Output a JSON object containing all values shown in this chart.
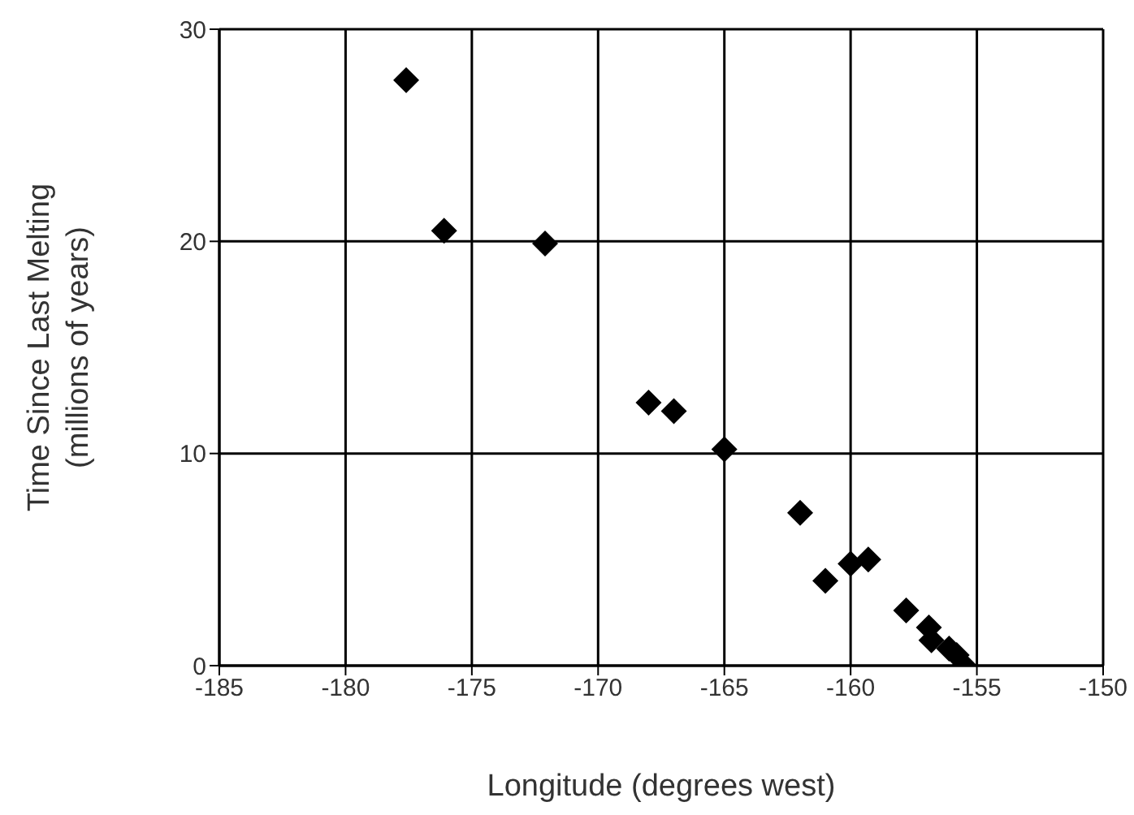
{
  "chart_data": {
    "type": "scatter",
    "xlabel": "Longitude (degrees west)",
    "ylabel": "Time Since Last Melting\n(millions of years)",
    "x": [
      -177.6,
      -176.1,
      -172.1,
      -168,
      -167,
      -165,
      -162,
      -161,
      -160,
      -159.3,
      -157.8,
      -156.9,
      -156.8,
      -156.1,
      -155.8,
      -155.5
    ],
    "series": [
      {
        "color": "#000000",
        "values": [
          27.6,
          20.5,
          19.9,
          12.4,
          12,
          10.2,
          7.2,
          4,
          4.8,
          5,
          2.6,
          1.8,
          1.2,
          0.8,
          0.5,
          0
        ]
      }
    ],
    "xlim": [
      -185,
      -150
    ],
    "xticks": [
      -185,
      -180,
      -175,
      -170,
      -165,
      -160,
      -155,
      -150
    ],
    "ylim": [
      0,
      30
    ],
    "yticks": [
      0,
      10,
      20,
      30
    ],
    "grid": true,
    "legend": false,
    "marker": "diamond"
  }
}
